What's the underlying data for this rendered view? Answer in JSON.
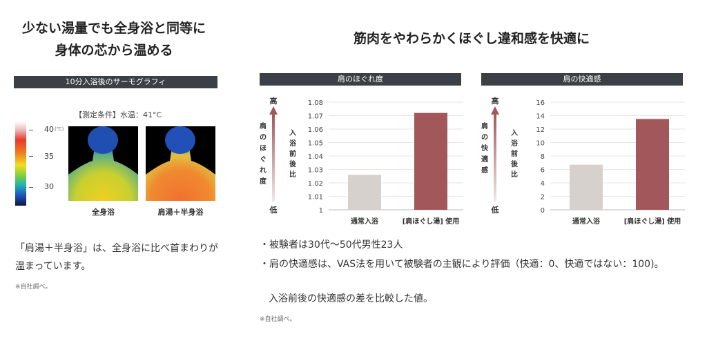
{
  "left": {
    "heading_line1": "少ない湯量でも全身浴と同等に",
    "heading_line2": "身体の芯から温める",
    "section_bar": "10分入浴後のサーモグラフィ",
    "condition": "【測定条件】水温：41°C",
    "scale_labels": [
      "40",
      "35",
      "30"
    ],
    "scale_unit": "(℃)",
    "image_captions": [
      "全身浴",
      "肩湯＋半身浴"
    ],
    "description": "「肩湯＋半身浴」は、全身浴に比べ首まわりが温まっています。",
    "footnote": "※自社調べ。"
  },
  "right": {
    "heading": "筋肉をやわらかくほぐし違和感を快適に",
    "notes": [
      "・被験者は30代〜50代男性23人",
      "・肩の快適感は、VAS法を用いて被験者の主観により評価（快適：0、快適ではない：100)。",
      "入浴前後の快適感の差を比較した値。"
    ],
    "footnote": "※自社調べ。"
  },
  "colors": {
    "bar_light": "#d6d1cd",
    "bar_accent": "#a2575a",
    "title_bg": "#3a4045",
    "arrow": "#a2575a"
  },
  "chart_data": [
    {
      "type": "bar",
      "title": "肩のほぐれ度",
      "axis_high": "高",
      "axis_low": "低",
      "axis_left_label": "肩のほぐれ度",
      "ylabel": "入浴前後比",
      "categories": [
        "通常入浴",
        "[肩ほぐし湯] 使用"
      ],
      "values": [
        1.026,
        1.072
      ],
      "ylim": [
        1.0,
        1.08
      ],
      "yticks": [
        "1.08",
        "1.07",
        "1.06",
        "1.05",
        "1.04",
        "1.03",
        "1.02",
        "1.01",
        "1"
      ],
      "grid": true
    },
    {
      "type": "bar",
      "title": "肩の快適感",
      "axis_high": "高",
      "axis_low": "低",
      "axis_left_label": "肩の快適感",
      "ylabel": "入浴前後比",
      "categories": [
        "通常入浴",
        "[肩ほぐし湯] 使用"
      ],
      "values": [
        6.7,
        13.5
      ],
      "ylim": [
        0,
        16
      ],
      "yticks": [
        "16",
        "14",
        "12",
        "10",
        "8",
        "6",
        "4",
        "2",
        "0"
      ],
      "grid": true
    }
  ]
}
